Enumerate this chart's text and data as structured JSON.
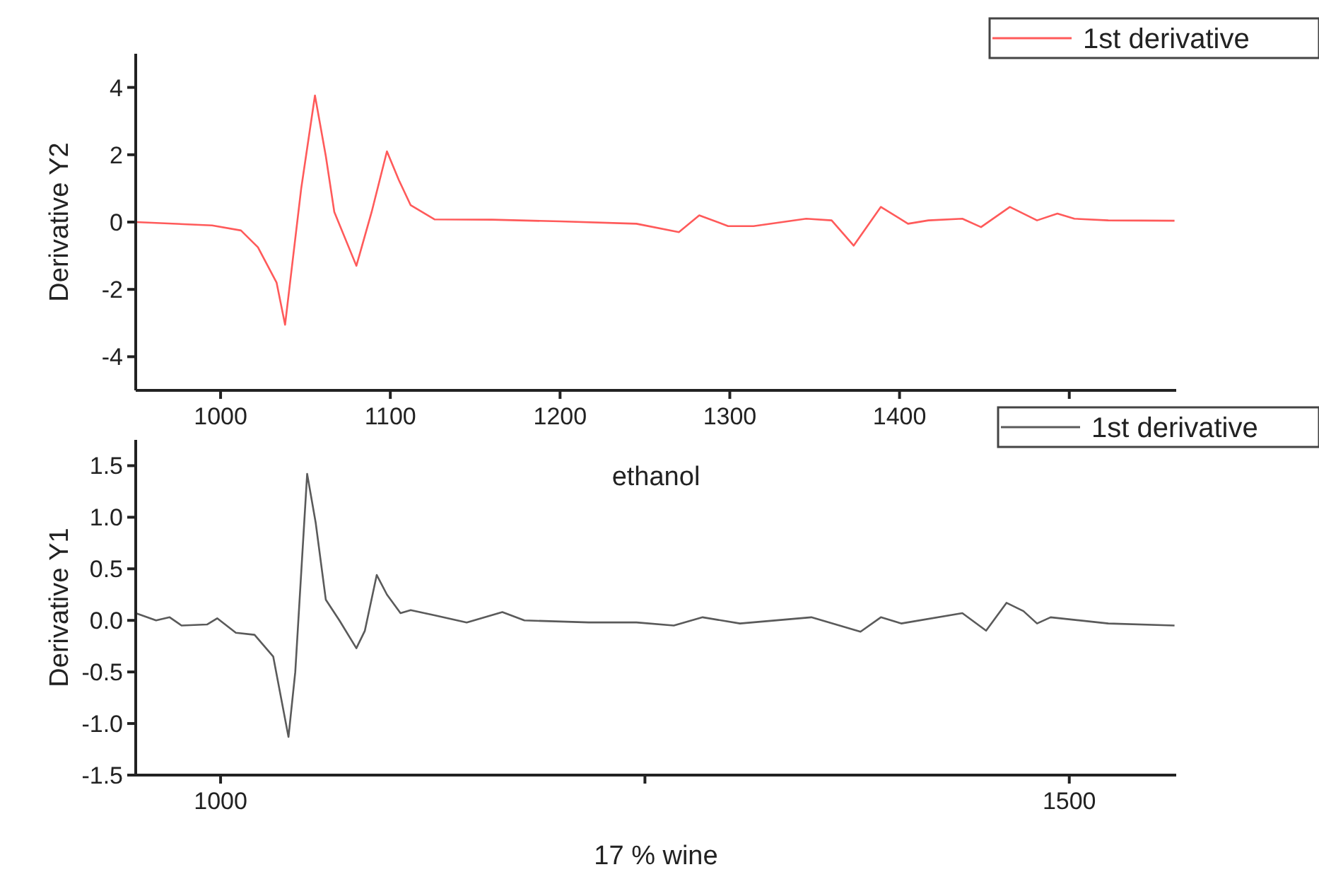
{
  "chart_data": [
    {
      "type": "line",
      "xlabel": "ethanol",
      "ylabel": "Derivative Y2",
      "xlim": [
        950,
        1563
      ],
      "ylim": [
        -5,
        5
      ],
      "xticks": [
        1000,
        1100,
        1200,
        1300,
        1400,
        {
          "value": 1500,
          "label": null
        }
      ],
      "yticks": [
        -4,
        -2,
        0,
        2,
        4
      ],
      "grid": false,
      "legend": "top right",
      "line_style": "solid",
      "series": [
        {
          "name": "1st derivative",
          "color": "#ff5a5a",
          "x": [
            950,
            995,
            1012,
            1022,
            1033,
            1038,
            1047.5,
            1055.6,
            1062,
            1067,
            1080,
            1089,
            1098,
            1105,
            1112,
            1126,
            1160,
            1200,
            1245,
            1270,
            1282,
            1299,
            1314,
            1345,
            1360,
            1373,
            1389,
            1405,
            1417,
            1437,
            1448,
            1465,
            1481,
            1493,
            1503,
            1523,
            1562
          ],
          "values": [
            0,
            -0.1,
            -0.25,
            -0.75,
            -1.8,
            -3.05,
            1.0,
            3.76,
            1.96,
            0.3,
            -1.3,
            0.3,
            2.1,
            1.25,
            0.5,
            0.08,
            0.07,
            0.02,
            -0.05,
            -0.3,
            0.2,
            -0.12,
            -0.12,
            0.1,
            0.05,
            -0.7,
            0.45,
            -0.05,
            0.05,
            0.1,
            -0.15,
            0.45,
            0.05,
            0.25,
            0.1,
            0.05,
            0.04
          ]
        }
      ]
    },
    {
      "type": "line",
      "xlabel": "17 % wine",
      "ylabel": "Derivative Y1",
      "xlim": [
        950,
        1563
      ],
      "ylim": [
        -1.5,
        1.75
      ],
      "xticks": [
        1000,
        {
          "value": 1250,
          "label": null
        },
        1500
      ],
      "yticks": [
        {
          "value": -1.5,
          "label": "-1.5"
        },
        {
          "value": -1,
          "label": "-1.0"
        },
        {
          "value": -0.5,
          "label": "-0.5"
        },
        {
          "value": 0,
          "label": "0.0"
        },
        {
          "value": 0.5,
          "label": "0.5"
        },
        {
          "value": 1,
          "label": "1.0"
        },
        {
          "value": 1.5,
          "label": "1.5"
        }
      ],
      "grid": false,
      "legend": "top right",
      "line_style": "solid",
      "series": [
        {
          "name": "1st derivative",
          "color": "#5a5a5a",
          "x": [
            950,
            962,
            970,
            977,
            992,
            998,
            1009,
            1020,
            1031,
            1040,
            1044,
            1048,
            1051,
            1056,
            1062,
            1070,
            1080,
            1085,
            1092,
            1098,
            1106,
            1112,
            1126,
            1145,
            1166,
            1179,
            1217,
            1245,
            1267,
            1284,
            1306,
            1348,
            1377,
            1389,
            1401,
            1437,
            1451,
            1463,
            1473,
            1481,
            1489,
            1523,
            1562
          ],
          "values": [
            0.07,
            0.0,
            0.03,
            -0.05,
            -0.04,
            0.02,
            -0.12,
            -0.14,
            -0.35,
            -1.13,
            -0.5,
            0.6,
            1.42,
            0.95,
            0.2,
            0.0,
            -0.27,
            -0.1,
            0.44,
            0.25,
            0.07,
            0.1,
            0.05,
            -0.02,
            0.08,
            0.0,
            -0.02,
            -0.02,
            -0.05,
            0.03,
            -0.03,
            0.03,
            -0.11,
            0.03,
            -0.03,
            0.07,
            -0.1,
            0.17,
            0.09,
            -0.03,
            0.03,
            -0.03,
            -0.05
          ]
        }
      ]
    }
  ]
}
